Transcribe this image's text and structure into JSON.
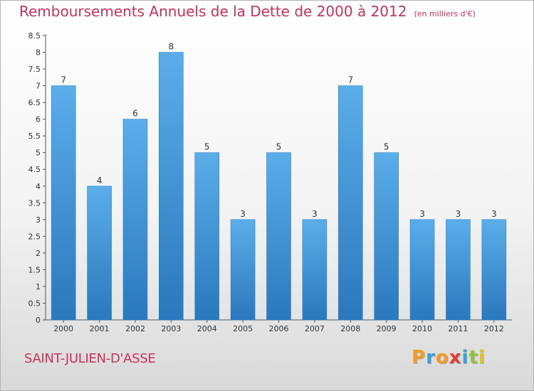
{
  "chart_data": {
    "type": "bar",
    "title": "Remboursements Annuels de la Dette de 2000 à 2012",
    "unit_note": "(en milliers d'€)",
    "xlabel": "",
    "ylabel": "",
    "categories": [
      "2000",
      "2001",
      "2002",
      "2003",
      "2004",
      "2005",
      "2006",
      "2007",
      "2008",
      "2009",
      "2010",
      "2011",
      "2012"
    ],
    "values": [
      7,
      4,
      6,
      8,
      5,
      3,
      5,
      3,
      7,
      5,
      3,
      3,
      3
    ],
    "value_labels": [
      "7",
      "4",
      "6",
      "8",
      "5",
      "3",
      "5",
      "3",
      "7",
      "5",
      "3",
      "3",
      "3"
    ],
    "yticks": [
      "0",
      "0.5",
      "1",
      "1.5",
      "2",
      "2.5",
      "3",
      "3.5",
      "4",
      "4.5",
      "5",
      "5.5",
      "6",
      "6.5",
      "7",
      "7.5",
      "8",
      "8.5"
    ],
    "ylim": [
      0,
      8.5
    ],
    "grid": false,
    "bar_color": "#4a9de0"
  },
  "footer": {
    "commune": "SAINT-JULIEN-D'ASSE",
    "logo_letters": [
      "P",
      "r",
      "o",
      "x",
      "i",
      "t",
      "i"
    ],
    "logo_colors": [
      "#f39a1f",
      "#3aa2db",
      "#f39a1f",
      "#e53a3a",
      "#3aa2db",
      "#8fc33c",
      "#e5c21a"
    ]
  }
}
